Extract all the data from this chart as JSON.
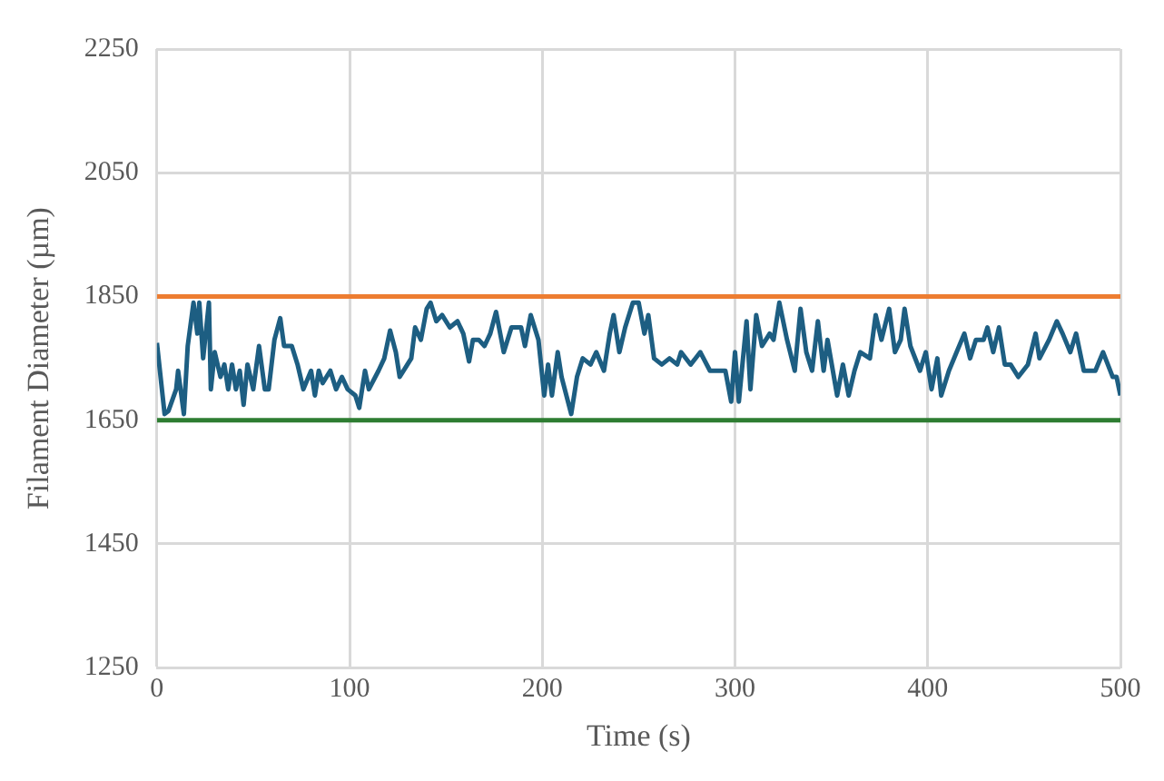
{
  "chart_data": {
    "type": "line",
    "xlabel": "Time (s)",
    "ylabel": "Filament Diameter (µm)",
    "xlim": [
      0,
      500
    ],
    "xticks": [
      0,
      100,
      200,
      300,
      400,
      500
    ],
    "ylim": [
      1250,
      2250
    ],
    "yticks": [
      1250,
      1450,
      1650,
      1850,
      2050,
      2250
    ],
    "grid": true,
    "legend": false,
    "marker": "none",
    "line_style": "solid",
    "series": [
      {
        "color": "#1d5e82",
        "x": [
          0,
          4,
          6,
          10,
          11,
          14,
          16,
          19,
          21,
          22,
          24,
          27,
          28,
          30,
          33,
          35,
          37,
          39,
          41,
          43,
          45,
          47,
          50,
          53,
          56,
          58,
          61,
          64,
          66,
          70,
          73,
          76,
          80,
          82,
          84,
          86,
          90,
          93,
          96,
          99,
          103,
          105,
          108,
          110,
          115,
          118,
          121,
          124,
          126,
          130,
          132,
          134,
          137,
          140,
          142,
          145,
          148,
          152,
          156,
          159,
          162,
          164,
          167,
          170,
          173,
          176,
          180,
          184,
          189,
          191,
          194,
          198,
          201,
          203,
          205,
          208,
          210,
          215,
          218,
          221,
          225,
          228,
          232,
          235,
          237,
          240,
          243,
          247,
          250,
          253,
          255,
          258,
          262,
          266,
          270,
          272,
          277,
          282,
          287,
          295,
          298,
          300,
          302,
          306,
          308,
          311,
          314,
          318,
          320,
          323,
          327,
          331,
          334,
          337,
          340,
          343,
          346,
          348,
          353,
          356,
          359,
          362,
          365,
          370,
          373,
          376,
          380,
          383,
          386,
          388,
          391,
          396,
          399,
          402,
          405,
          407,
          411,
          415,
          419,
          422,
          425,
          429,
          431,
          434,
          437,
          440,
          443,
          447,
          452,
          456,
          458,
          463,
          467,
          470,
          474,
          477,
          481,
          487,
          491,
          496,
          498,
          500
        ],
        "values": [
          1775,
          1660,
          1665,
          1700,
          1730,
          1660,
          1770,
          1840,
          1790,
          1840,
          1750,
          1840,
          1700,
          1760,
          1720,
          1740,
          1700,
          1740,
          1700,
          1730,
          1675,
          1740,
          1700,
          1770,
          1700,
          1700,
          1780,
          1815,
          1770,
          1770,
          1740,
          1700,
          1730,
          1690,
          1730,
          1710,
          1730,
          1700,
          1720,
          1700,
          1690,
          1670,
          1730,
          1700,
          1730,
          1750,
          1795,
          1760,
          1720,
          1740,
          1750,
          1800,
          1780,
          1830,
          1840,
          1810,
          1820,
          1800,
          1810,
          1790,
          1745,
          1780,
          1780,
          1770,
          1790,
          1825,
          1760,
          1800,
          1800,
          1770,
          1820,
          1780,
          1690,
          1740,
          1690,
          1760,
          1720,
          1660,
          1720,
          1750,
          1740,
          1760,
          1730,
          1790,
          1820,
          1760,
          1800,
          1840,
          1840,
          1790,
          1820,
          1750,
          1740,
          1750,
          1740,
          1760,
          1740,
          1760,
          1730,
          1730,
          1680,
          1760,
          1680,
          1810,
          1700,
          1820,
          1770,
          1790,
          1780,
          1840,
          1780,
          1730,
          1830,
          1760,
          1730,
          1810,
          1730,
          1780,
          1690,
          1740,
          1690,
          1730,
          1760,
          1750,
          1820,
          1780,
          1830,
          1760,
          1780,
          1830,
          1770,
          1730,
          1760,
          1700,
          1750,
          1690,
          1730,
          1760,
          1790,
          1750,
          1780,
          1780,
          1800,
          1760,
          1800,
          1740,
          1740,
          1720,
          1740,
          1790,
          1750,
          1780,
          1810,
          1790,
          1760,
          1790,
          1730,
          1730,
          1760,
          1720,
          1720,
          1690
        ]
      }
    ],
    "ref_lines": [
      {
        "axis": "y",
        "value": 1850,
        "color": "#ed7d31"
      },
      {
        "axis": "y",
        "value": 1650,
        "color": "#2e7d32"
      }
    ]
  }
}
